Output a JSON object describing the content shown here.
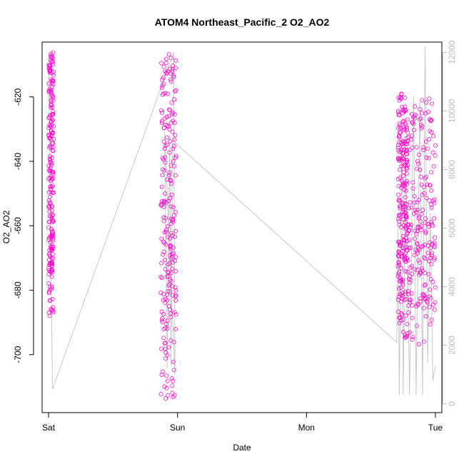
{
  "chart_data": {
    "type": "scatter",
    "title": "ATOM4 Northeast_Pacific_2 O2_AO2",
    "xlabel": "Date",
    "ylabel": "O2_AO2",
    "x_ticks": [
      "Sat",
      "Sun",
      "Mon",
      "Tue"
    ],
    "x_tick_values": [
      0,
      1,
      2,
      3
    ],
    "xlim": [
      -0.05,
      3.05
    ],
    "y_ticks": [
      -620,
      -640,
      -660,
      -680,
      -700
    ],
    "ylim": [
      -718,
      -603
    ],
    "y2_ticks": [
      0,
      2000,
      4000,
      6000,
      8000,
      10000,
      12000
    ],
    "y2lim": [
      -300,
      12350
    ],
    "grid": false,
    "series": [
      {
        "style": "points",
        "color": "#ff00cc",
        "clusters": [
          {
            "x_start": 0.0,
            "x_end": 0.04,
            "y_min": -688,
            "y_max": -606
          },
          {
            "x_start": 0.87,
            "x_end": 0.99,
            "y_min": -714,
            "y_max": -606
          },
          {
            "x_start": 2.71,
            "x_end": 2.78,
            "y_min": -695,
            "y_max": -619
          },
          {
            "x_start": 2.78,
            "x_end": 3.0,
            "y_min": -697,
            "y_max": -620
          }
        ]
      },
      {
        "style": "line",
        "axis": "right",
        "color": "#c8c8c8",
        "x": [
          0.0,
          0.03,
          0.97,
          0.98,
          0.9,
          0.92,
          0.94,
          0.95,
          0.96,
          2.7,
          2.71,
          2.72,
          2.74,
          2.75,
          2.77,
          2.8,
          2.83,
          2.85,
          2.88,
          2.9,
          2.92,
          2.94,
          2.96,
          2.98,
          3.0
        ],
        "y": [
          12000,
          500,
          12000,
          1000,
          9300,
          1200,
          9200,
          1300,
          9000,
          2100,
          6000,
          300,
          9000,
          300,
          8500,
          300,
          10500,
          300,
          10300,
          300,
          12200,
          1400,
          6500,
          800,
          1300
        ]
      }
    ]
  }
}
